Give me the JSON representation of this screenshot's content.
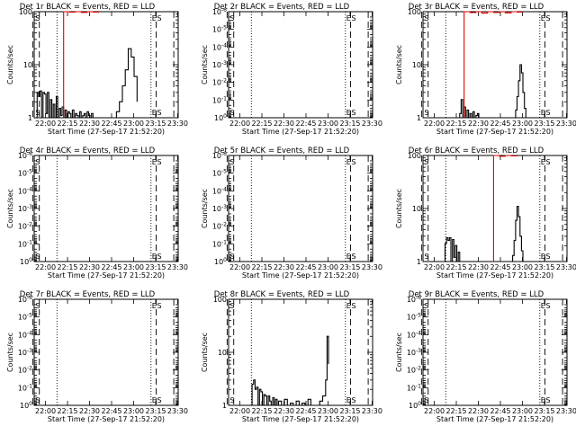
{
  "figure": {
    "xlabel": "Start Time (27-Sep-17 21:52:20)",
    "ylabel": "Counts/sec",
    "xticks": [
      "22:00",
      "22:15",
      "22:30",
      "22:45",
      "23:00",
      "23:15",
      "23:30"
    ],
    "xrange_min": [
      0,
      98
    ],
    "xtick_min": [
      7.67,
      22.67,
      37.67,
      52.67,
      67.67,
      82.67,
      97.67
    ],
    "marker_lines": {
      "dashed_min": [
        -1.0,
        3.5,
        83.0,
        95.0
      ],
      "dotted_min": [
        15.5,
        79.5
      ]
    },
    "marker_labels": {
      "start": "S",
      "end": "E",
      "end_s": "S"
    },
    "colors": {
      "events": "#000000",
      "lld": "#e00000"
    }
  },
  "chart_data": [
    {
      "type": "line",
      "title": "Det 1r BLACK = Events, RED = LLD",
      "yscale": "log",
      "ylim": [
        1,
        100
      ],
      "yticks": [
        {
          "v": 100,
          "label": "100"
        },
        {
          "v": 10,
          "label": "10"
        },
        {
          "v": 1,
          "label": "1"
        }
      ],
      "series": [
        {
          "name": "Events",
          "x": [
            2,
            3,
            4,
            5,
            6,
            7,
            8,
            9,
            10,
            11,
            12,
            13,
            14,
            15,
            16,
            17,
            18,
            19,
            20,
            21,
            22,
            23,
            24,
            25,
            26,
            27,
            28,
            29,
            30,
            31,
            32,
            33,
            34,
            35,
            36,
            37,
            38,
            39,
            40,
            50,
            52,
            54,
            56,
            58,
            60,
            62,
            64,
            66,
            68,
            70
          ],
          "y": [
            3.0,
            2.5,
            3.2,
            1.0,
            3.0,
            2.8,
            1.2,
            3.0,
            1.0,
            2.2,
            1.0,
            1.8,
            1.0,
            2.5,
            1.0,
            1.5,
            1.1,
            1.6,
            1.0,
            1.4,
            1.0,
            1.3,
            1.2,
            1.0,
            1.4,
            1.0,
            1.2,
            1.1,
            1.0,
            1.3,
            1.0,
            1.1,
            1.2,
            1.0,
            1.3,
            1.1,
            1.0,
            1.2,
            1.0,
            1.0,
            1.0,
            1.0,
            1.3,
            2.0,
            4.0,
            8.0,
            20.0,
            14.0,
            6.0,
            2.0
          ]
        },
        {
          "name": "LLD",
          "x": [
            20,
            24,
            28,
            32,
            36,
            40,
            44
          ],
          "y": [
            100,
            98,
            100,
            97,
            100,
            98,
            100
          ]
        }
      ]
    },
    {
      "type": "line",
      "title": "Det 2r BLACK = Events, RED = LLD",
      "yscale": "log",
      "ylim": [
        1,
        1e-06
      ],
      "yticks": [
        {
          "v": 1,
          "label": "10^0"
        },
        {
          "v": 0.1,
          "label": "10^-1"
        },
        {
          "v": 0.01,
          "label": "10^-2"
        },
        {
          "v": 0.001,
          "label": "10^-3"
        },
        {
          "v": 0.0001,
          "label": "10^-4"
        },
        {
          "v": 1e-05,
          "label": "10^-5"
        },
        {
          "v": 1e-06,
          "label": "10^-6"
        }
      ],
      "series": []
    },
    {
      "type": "line",
      "title": "Det 3r BLACK = Events, RED = LLD",
      "yscale": "log",
      "ylim": [
        1,
        100
      ],
      "yticks": [
        {
          "v": 100,
          "label": "100"
        },
        {
          "v": 10,
          "label": "10"
        },
        {
          "v": 1,
          "label": "1"
        }
      ],
      "series": [
        {
          "name": "Events",
          "x": [
            25,
            26,
            27,
            28,
            29,
            30,
            31,
            32,
            33,
            34,
            35,
            36,
            37,
            38,
            62,
            63,
            64,
            65,
            66,
            67,
            68,
            69,
            70
          ],
          "y": [
            1.2,
            2.2,
            1.0,
            1.6,
            1.0,
            1.4,
            1.0,
            1.2,
            1.0,
            1.3,
            1.0,
            1.1,
            1.2,
            1.0,
            1.0,
            1.4,
            2.5,
            5.0,
            10.0,
            7.0,
            3.0,
            1.5,
            1.0
          ]
        },
        {
          "name": "LLD",
          "x": [
            28,
            32,
            36,
            40,
            44,
            48,
            52,
            56,
            60,
            64,
            68
          ],
          "y": [
            100,
            96,
            100,
            94,
            100,
            97,
            100,
            95,
            100,
            98,
            100
          ]
        }
      ]
    },
    {
      "type": "line",
      "title": "Det 4r BLACK = Events, RED = LLD",
      "yscale": "log",
      "ylim": [
        1,
        1e-06
      ],
      "yticks": [
        {
          "v": 1,
          "label": "10^0"
        },
        {
          "v": 0.1,
          "label": "10^-1"
        },
        {
          "v": 0.01,
          "label": "10^-2"
        },
        {
          "v": 0.001,
          "label": "10^-3"
        },
        {
          "v": 0.0001,
          "label": "10^-4"
        },
        {
          "v": 1e-05,
          "label": "10^-5"
        },
        {
          "v": 1e-06,
          "label": "10^-6"
        }
      ],
      "series": []
    },
    {
      "type": "line",
      "title": "Det 5r BLACK = Events, RED = LLD",
      "yscale": "log",
      "ylim": [
        1,
        1e-06
      ],
      "yticks": [
        {
          "v": 1,
          "label": "10^0"
        },
        {
          "v": 0.1,
          "label": "10^-1"
        },
        {
          "v": 0.01,
          "label": "10^-2"
        },
        {
          "v": 0.001,
          "label": "10^-3"
        },
        {
          "v": 0.0001,
          "label": "10^-4"
        },
        {
          "v": 1e-05,
          "label": "10^-5"
        },
        {
          "v": 1e-06,
          "label": "10^-6"
        }
      ],
      "series": []
    },
    {
      "type": "line",
      "title": "Det 6r BLACK = Events, RED = LLD",
      "yscale": "log",
      "ylim": [
        1,
        100
      ],
      "yticks": [
        {
          "v": 100,
          "label": "100"
        },
        {
          "v": 10,
          "label": "10"
        },
        {
          "v": 1,
          "label": "1"
        }
      ],
      "series": [
        {
          "name": "Events",
          "x": [
            15,
            16,
            17,
            18,
            19,
            20,
            21,
            22,
            23,
            24,
            25,
            60,
            61,
            62,
            63,
            64,
            65,
            66,
            67,
            68,
            69
          ],
          "y": [
            2.2,
            2.8,
            2.5,
            2.8,
            1.0,
            2.6,
            1.2,
            2.0,
            1.0,
            1.5,
            1.0,
            1.0,
            1.3,
            2.5,
            6.0,
            11.0,
            7.0,
            3.0,
            1.6,
            1.0,
            1.0
          ]
        },
        {
          "name": "LLD",
          "x": [
            48,
            52,
            56,
            60,
            64
          ],
          "y": [
            100,
            97,
            100,
            98,
            100
          ]
        }
      ]
    },
    {
      "type": "line",
      "title": "Det 7r BLACK = Events, RED = LLD",
      "yscale": "log",
      "ylim": [
        1,
        1e-06
      ],
      "yticks": [
        {
          "v": 1,
          "label": "10^0"
        },
        {
          "v": 0.1,
          "label": "10^-1"
        },
        {
          "v": 0.01,
          "label": "10^-2"
        },
        {
          "v": 0.001,
          "label": "10^-3"
        },
        {
          "v": 0.0001,
          "label": "10^-4"
        },
        {
          "v": 1e-05,
          "label": "10^-5"
        },
        {
          "v": 1e-06,
          "label": "10^-6"
        }
      ],
      "series": []
    },
    {
      "type": "line",
      "title": "Det 8r BLACK = Events, RED = LLD",
      "yscale": "log",
      "ylim": [
        1,
        100
      ],
      "yticks": [
        {
          "v": 100,
          "label": "100"
        },
        {
          "v": 10,
          "label": "10"
        },
        {
          "v": 1,
          "label": "1"
        }
      ],
      "series": [
        {
          "name": "Events",
          "x": [
            16,
            17,
            18,
            19,
            20,
            21,
            22,
            23,
            24,
            25,
            26,
            27,
            28,
            29,
            30,
            31,
            32,
            33,
            34,
            36,
            38,
            40,
            42,
            44,
            46,
            48,
            50,
            52,
            54,
            56,
            60,
            62,
            64,
            66,
            67,
            68
          ],
          "y": [
            2.5,
            3.0,
            2.0,
            2.2,
            1.0,
            2.0,
            1.8,
            1.0,
            1.6,
            1.5,
            1.0,
            1.5,
            1.2,
            1.0,
            1.4,
            1.0,
            1.3,
            1.0,
            1.2,
            1.0,
            1.3,
            1.0,
            1.1,
            1.0,
            1.2,
            1.0,
            1.1,
            1.0,
            1.3,
            1.0,
            1.0,
            1.2,
            1.5,
            3.0,
            20.0,
            6.0
          ]
        }
      ]
    },
    {
      "type": "line",
      "title": "Det 9r BLACK = Events, RED = LLD",
      "yscale": "log",
      "ylim": [
        1,
        1e-06
      ],
      "yticks": [
        {
          "v": 1,
          "label": "10^0"
        },
        {
          "v": 0.1,
          "label": "10^-1"
        },
        {
          "v": 0.01,
          "label": "10^-2"
        },
        {
          "v": 0.001,
          "label": "10^-3"
        },
        {
          "v": 0.0001,
          "label": "10^-4"
        },
        {
          "v": 1e-05,
          "label": "10^-5"
        },
        {
          "v": 1e-06,
          "label": "10^-6"
        }
      ],
      "series": []
    }
  ]
}
